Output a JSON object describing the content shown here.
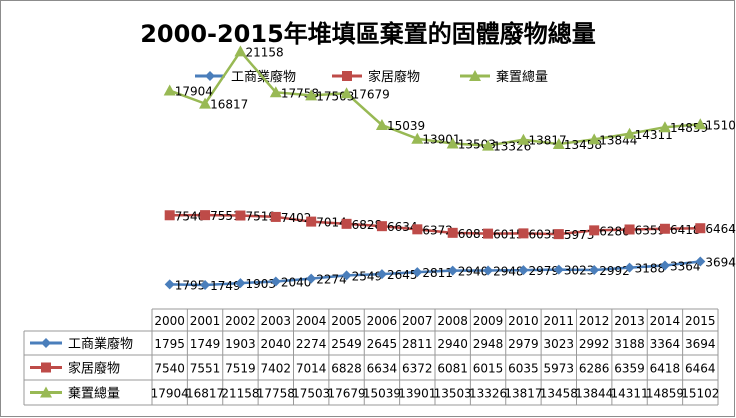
{
  "chart_data": {
    "type": "line",
    "title": "2000-2015年堆填區棄置的固體廢物總量",
    "categories": [
      "2000",
      "2001",
      "2002",
      "2003",
      "2004",
      "2005",
      "2006",
      "2007",
      "2008",
      "2009",
      "2010",
      "2011",
      "2012",
      "2013",
      "2014",
      "2015"
    ],
    "series": [
      {
        "name": "工商業廢物",
        "color": "#4a7ebb",
        "marker": "diamond",
        "values": [
          1795,
          1749,
          1903,
          2040,
          2274,
          2549,
          2645,
          2811,
          2940,
          2948,
          2979,
          3023,
          2992,
          3188,
          3364,
          3694
        ]
      },
      {
        "name": "家居廢物",
        "color": "#be4b48",
        "marker": "square",
        "values": [
          7540,
          7551,
          7519,
          7402,
          7014,
          6828,
          6634,
          6372,
          6081,
          6015,
          6035,
          5973,
          6286,
          6359,
          6418,
          6464
        ]
      },
      {
        "name": "棄置總量",
        "color": "#98b954",
        "marker": "triangle",
        "values": [
          17904,
          16817,
          21158,
          17758,
          17503,
          17679,
          15039,
          13901,
          13503,
          13326,
          13817,
          13458,
          13844,
          14311,
          14859,
          15102
        ]
      }
    ],
    "legend": "top",
    "grid": false,
    "data_table": true
  }
}
